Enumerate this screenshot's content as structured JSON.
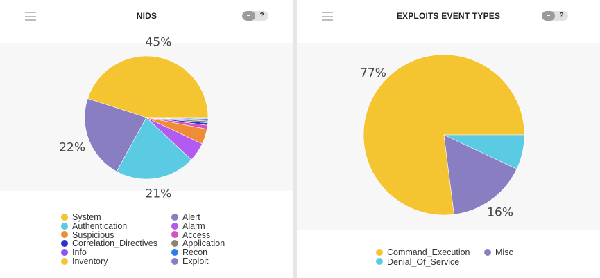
{
  "colors": {
    "yellow": "#f5c431",
    "cyan": "#5bcbe3",
    "purple": "#8a7ec3",
    "magenta": "#b25bf0",
    "orange": "#ef8d37",
    "darkblue": "#2534c9",
    "pink": "#d94fc0",
    "violet": "#8d55ef",
    "gray": "#8a8572",
    "blue": "#2a7fe5"
  },
  "left_panel": {
    "title": "NIDS",
    "menu_icon": "hamburger-icon",
    "minus_label": "–",
    "help_label": "?"
  },
  "right_panel": {
    "title": "EXPLOITS EVENT TYPES",
    "menu_icon": "hamburger-icon",
    "minus_label": "–",
    "help_label": "?"
  },
  "chart_data": [
    {
      "type": "pie",
      "title": "NIDS",
      "start_angle_deg": 0,
      "slices": [
        {
          "name": "System",
          "value": 45,
          "color": "#f5c431",
          "label": "45%"
        },
        {
          "name": "Alert",
          "value": 22,
          "color": "#8a7ec3",
          "label": "22%"
        },
        {
          "name": "Authentication",
          "value": 21,
          "color": "#5bcbe3",
          "label": "21%"
        },
        {
          "name": "Alarm",
          "value": 5,
          "color": "#b25bf0",
          "label": ""
        },
        {
          "name": "Suspicious",
          "value": 4,
          "color": "#ef8d37",
          "label": ""
        },
        {
          "name": "Access",
          "value": 1,
          "color": "#d94fc0",
          "label": ""
        },
        {
          "name": "Correlation_Directives",
          "value": 0.6,
          "color": "#2534c9",
          "label": ""
        },
        {
          "name": "Application",
          "value": 0.5,
          "color": "#8a8572",
          "label": ""
        },
        {
          "name": "Info",
          "value": 0.3,
          "color": "#8d55ef",
          "label": ""
        },
        {
          "name": "Recon",
          "value": 0.3,
          "color": "#2a7fe5",
          "label": ""
        },
        {
          "name": "Exploit",
          "value": 0.2,
          "color": "#8a7ec3",
          "label": ""
        },
        {
          "name": "Inventory",
          "value": 0.1,
          "color": "#f5c431",
          "label": ""
        }
      ],
      "legend": {
        "placement": "bottom",
        "columns": [
          [
            {
              "name": "System",
              "color": "#f5c431"
            },
            {
              "name": "Authentication",
              "color": "#5bcbe3"
            },
            {
              "name": "Suspicious",
              "color": "#ef8d37"
            },
            {
              "name": "Correlation_Directives",
              "color": "#2534c9"
            },
            {
              "name": "Info",
              "color": "#8d55ef"
            },
            {
              "name": "Inventory",
              "color": "#f5c431"
            }
          ],
          [
            {
              "name": "Alert",
              "color": "#8a7ec3"
            },
            {
              "name": "Alarm",
              "color": "#b25bf0"
            },
            {
              "name": "Access",
              "color": "#d94fc0"
            },
            {
              "name": "Application",
              "color": "#8a8572"
            },
            {
              "name": "Recon",
              "color": "#2a7fe5"
            },
            {
              "name": "Exploit",
              "color": "#8a7ec3"
            }
          ]
        ]
      }
    },
    {
      "type": "pie",
      "title": "EXPLOITS EVENT TYPES",
      "start_angle_deg": 0,
      "slices": [
        {
          "name": "Command_Execution",
          "value": 77,
          "color": "#f5c431",
          "label": "77%"
        },
        {
          "name": "Misc",
          "value": 16,
          "color": "#8a7ec3",
          "label": "16%"
        },
        {
          "name": "Denial_Of_Service",
          "value": 7,
          "color": "#5bcbe3",
          "label": ""
        }
      ],
      "legend": {
        "placement": "bottom",
        "columns": [
          [
            {
              "name": "Command_Execution",
              "color": "#f5c431"
            },
            {
              "name": "Denial_Of_Service",
              "color": "#5bcbe3"
            }
          ],
          [
            {
              "name": "Misc",
              "color": "#8a7ec3"
            }
          ]
        ]
      }
    }
  ]
}
